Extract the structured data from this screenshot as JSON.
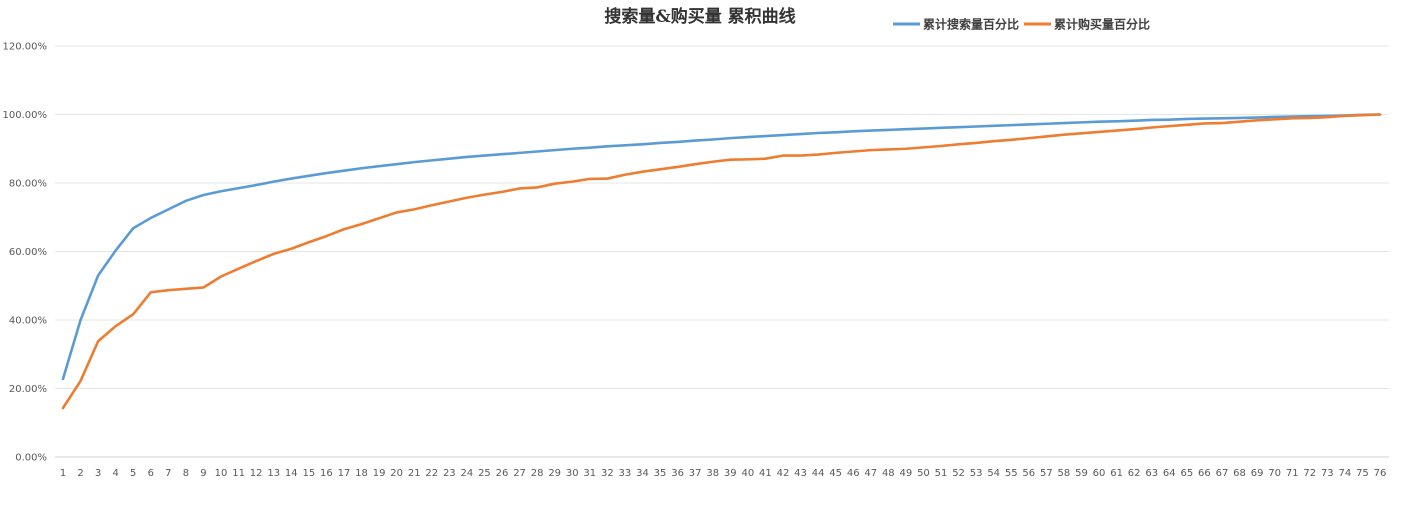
{
  "chart_data": {
    "type": "line",
    "title": "搜索量&购买量 累积曲线",
    "xlabel": "",
    "ylabel": "",
    "legend_position": "top-right",
    "grid": true,
    "ylim": [
      0,
      1.2
    ],
    "y_ticks": [
      "0.00%",
      "20.00%",
      "40.00%",
      "60.00%",
      "80.00%",
      "100.00%",
      "120.00%"
    ],
    "categories": [
      "1",
      "2",
      "3",
      "4",
      "5",
      "6",
      "7",
      "8",
      "9",
      "10",
      "11",
      "12",
      "13",
      "14",
      "15",
      "16",
      "17",
      "18",
      "19",
      "20",
      "21",
      "22",
      "23",
      "24",
      "25",
      "26",
      "27",
      "28",
      "29",
      "30",
      "31",
      "32",
      "33",
      "34",
      "35",
      "36",
      "37",
      "38",
      "39",
      "40",
      "41",
      "42",
      "43",
      "44",
      "45",
      "46",
      "47",
      "48",
      "49",
      "50",
      "51",
      "52",
      "53",
      "54",
      "55",
      "56",
      "57",
      "58",
      "59",
      "60",
      "61",
      "62",
      "63",
      "64",
      "65",
      "66",
      "67",
      "68",
      "69",
      "70",
      "71",
      "72",
      "73",
      "74",
      "75",
      "76"
    ],
    "series": [
      {
        "name": "累计搜索量百分比",
        "color": "#5B9BD5",
        "values": [
          0.228,
          0.4,
          0.53,
          0.603,
          0.668,
          0.698,
          0.723,
          0.748,
          0.765,
          0.776,
          0.785,
          0.794,
          0.804,
          0.813,
          0.821,
          0.829,
          0.836,
          0.843,
          0.849,
          0.855,
          0.861,
          0.866,
          0.871,
          0.876,
          0.88,
          0.884,
          0.888,
          0.892,
          0.896,
          0.9,
          0.903,
          0.907,
          0.91,
          0.913,
          0.917,
          0.92,
          0.924,
          0.927,
          0.931,
          0.934,
          0.937,
          0.94,
          0.943,
          0.946,
          0.948,
          0.951,
          0.953,
          0.955,
          0.957,
          0.959,
          0.961,
          0.963,
          0.965,
          0.967,
          0.969,
          0.971,
          0.973,
          0.975,
          0.977,
          0.979,
          0.98,
          0.982,
          0.984,
          0.985,
          0.987,
          0.988,
          0.989,
          0.99,
          0.991,
          0.993,
          0.994,
          0.995,
          0.996,
          0.997,
          0.999,
          1.0
        ]
      },
      {
        "name": "累计购买量百分比",
        "color": "#ED7D31",
        "values": [
          0.143,
          0.222,
          0.338,
          0.382,
          0.417,
          0.481,
          0.487,
          0.491,
          0.495,
          0.527,
          0.55,
          0.572,
          0.593,
          0.608,
          0.627,
          0.645,
          0.665,
          0.68,
          0.697,
          0.714,
          0.723,
          0.735,
          0.746,
          0.757,
          0.766,
          0.774,
          0.784,
          0.787,
          0.798,
          0.804,
          0.812,
          0.813,
          0.824,
          0.833,
          0.84,
          0.847,
          0.855,
          0.862,
          0.868,
          0.869,
          0.871,
          0.88,
          0.88,
          0.883,
          0.888,
          0.892,
          0.896,
          0.898,
          0.9,
          0.904,
          0.908,
          0.913,
          0.917,
          0.922,
          0.926,
          0.931,
          0.936,
          0.941,
          0.945,
          0.949,
          0.953,
          0.957,
          0.962,
          0.966,
          0.97,
          0.974,
          0.975,
          0.979,
          0.983,
          0.986,
          0.989,
          0.99,
          0.992,
          0.996,
          0.998,
          1.0
        ]
      }
    ]
  }
}
